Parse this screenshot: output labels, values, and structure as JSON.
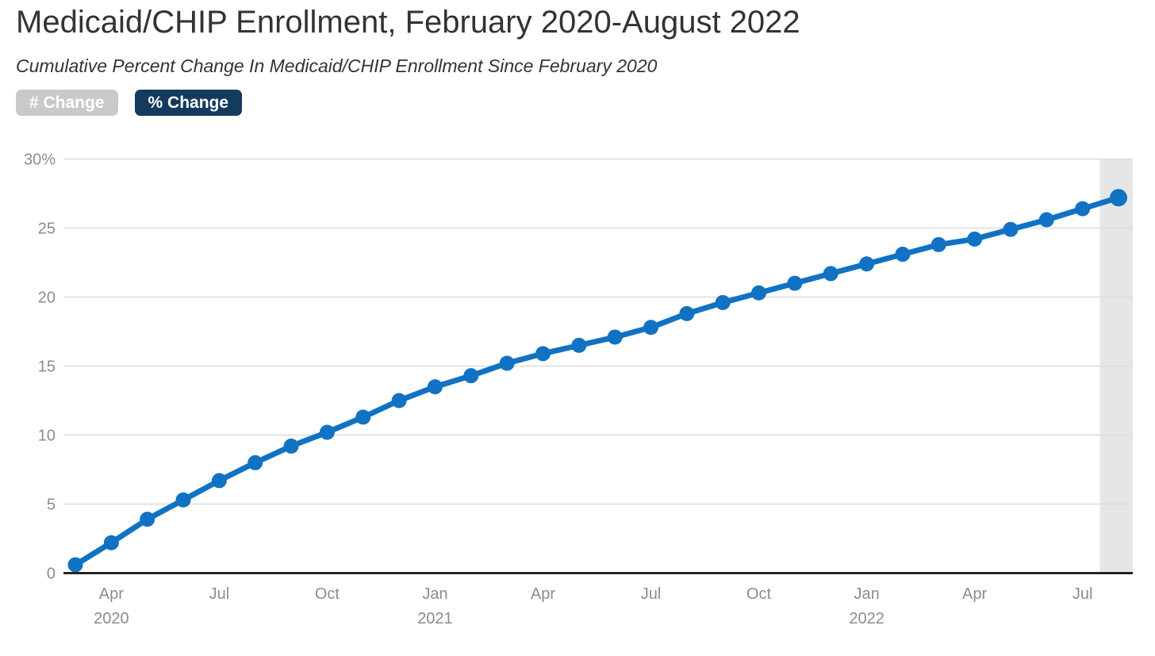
{
  "header": {
    "title": "Medicaid/CHIP Enrollment, February 2020-August 2022",
    "subtitle": "Cumulative Percent Change In Medicaid/CHIP Enrollment Since February 2020"
  },
  "toggles": {
    "number_change": {
      "label": "# Change",
      "selected": false
    },
    "percent_change": {
      "label": "% Change",
      "selected": true
    }
  },
  "colors": {
    "series_blue": "#1172c3",
    "plot_band_gray": "#e6e6e6",
    "gridline_gray": "#dcdcdc",
    "axis_line_black": "#000000",
    "axis_label_gray": "#8c8c8c",
    "title_text": "#333333",
    "button_inactive_bg": "#c9c9c9",
    "button_active_bg": "#143a5e",
    "button_text": "#ffffff"
  },
  "chart_data": {
    "type": "line",
    "title": "Medicaid/CHIP Enrollment, February 2020-August 2022",
    "subtitle": "Cumulative Percent Change In Medicaid/CHIP Enrollment Since February 2020",
    "ylabel": "",
    "xlabel": "",
    "ylim": [
      0,
      30
    ],
    "grid": true,
    "legend_position": "none",
    "series_name": "% Change",
    "x": [
      "Mar 2020",
      "Apr 2020",
      "May 2020",
      "Jun 2020",
      "Jul 2020",
      "Aug 2020",
      "Sep 2020",
      "Oct 2020",
      "Nov 2020",
      "Dec 2020",
      "Jan 2021",
      "Feb 2021",
      "Mar 2021",
      "Apr 2021",
      "May 2021",
      "Jun 2021",
      "Jul 2021",
      "Aug 2021",
      "Sep 2021",
      "Oct 2021",
      "Nov 2021",
      "Dec 2021",
      "Jan 2022",
      "Feb 2022",
      "Mar 2022",
      "Apr 2022",
      "May 2022",
      "Jun 2022",
      "Jul 2022",
      "Aug 2022"
    ],
    "values": [
      0.6,
      2.2,
      3.9,
      5.3,
      6.7,
      8.0,
      9.2,
      10.2,
      11.3,
      12.5,
      13.5,
      14.3,
      15.2,
      15.9,
      16.5,
      17.1,
      17.8,
      18.8,
      19.6,
      20.3,
      21.0,
      21.7,
      22.4,
      23.1,
      23.8,
      24.2,
      24.9,
      25.6,
      26.4,
      27.2
    ],
    "yticks": [
      {
        "v": 0,
        "label": "0"
      },
      {
        "v": 5,
        "label": "5"
      },
      {
        "v": 10,
        "label": "10"
      },
      {
        "v": 15,
        "label": "15"
      },
      {
        "v": 20,
        "label": "20"
      },
      {
        "v": 25,
        "label": "25"
      },
      {
        "v": 30,
        "label": "30%"
      }
    ],
    "xticks": [
      {
        "i": 1,
        "label": "Apr",
        "year": "2020"
      },
      {
        "i": 4,
        "label": "Jul",
        "year": ""
      },
      {
        "i": 7,
        "label": "Oct",
        "year": ""
      },
      {
        "i": 10,
        "label": "Jan",
        "year": "2021"
      },
      {
        "i": 13,
        "label": "Apr",
        "year": ""
      },
      {
        "i": 16,
        "label": "Jul",
        "year": ""
      },
      {
        "i": 19,
        "label": "Oct",
        "year": ""
      },
      {
        "i": 22,
        "label": "Jan",
        "year": "2022"
      },
      {
        "i": 25,
        "label": "Apr",
        "year": ""
      },
      {
        "i": 28,
        "label": "Jul",
        "year": ""
      }
    ],
    "highlight_band": {
      "covers": "Aug 2022",
      "meaning": "most-recent-month"
    }
  }
}
